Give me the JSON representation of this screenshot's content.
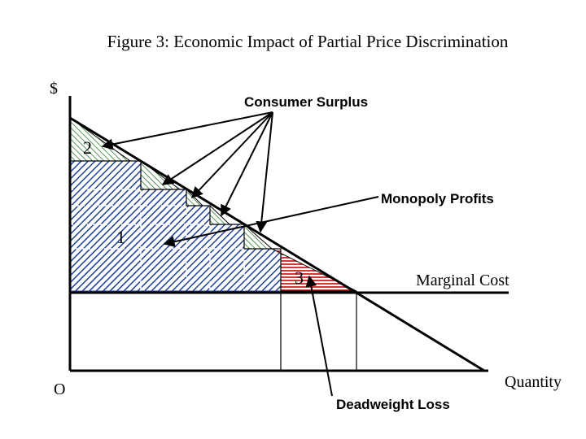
{
  "figure": {
    "title": "Figure 3:  Economic Impact of Partial Price Discrimination",
    "y_axis_label": "$",
    "origin_label": "O",
    "x_axis_label": "Quantity"
  },
  "annotations": {
    "consumer_surplus": "Consumer Surplus",
    "monopoly_profits": "Monopoly Profits",
    "marginal_cost": "Marginal Cost",
    "deadweight_loss": "Deadweight Loss"
  },
  "region_numbers": {
    "profits": "1",
    "consumer_surplus": "2",
    "deadweight_loss": "3"
  },
  "colors": {
    "line": "#000000",
    "monopoly_profits_hatch": "#1f3f9a",
    "consumer_surplus_hatch": "#2e7d32",
    "deadweight_loss_hatch": "#cc2222",
    "background": "#ffffff"
  }
}
